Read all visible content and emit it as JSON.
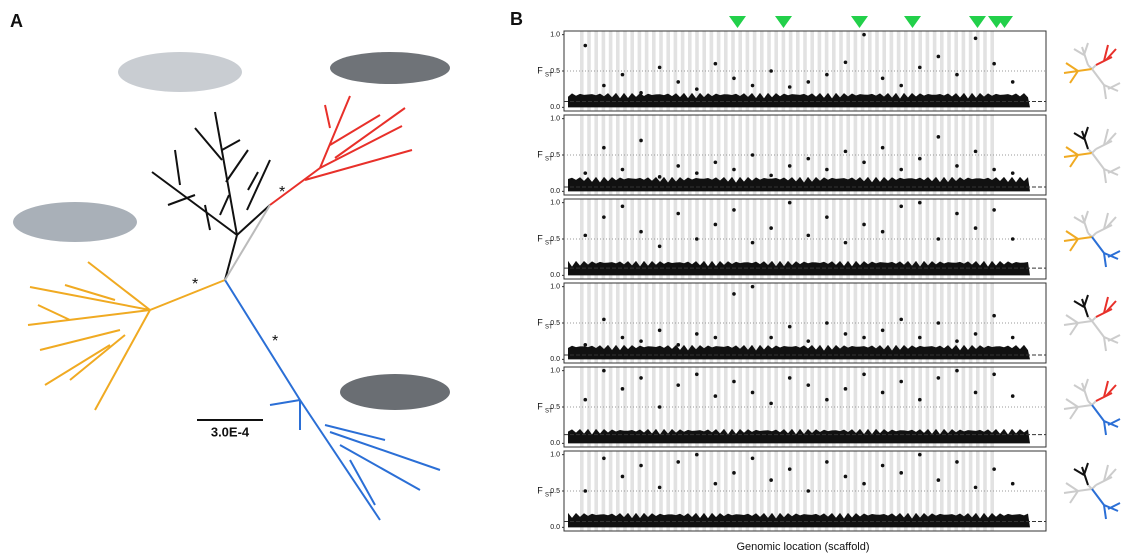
{
  "panel_a": {
    "label": "A",
    "scale_bar": "3.0E-4",
    "asterisks": [
      "*",
      "*",
      "*"
    ]
  },
  "panel_b": {
    "label": "B",
    "x_axis_label": "Genomic location (scaffold)"
  },
  "chart_data": [
    {
      "type": "scatter",
      "ylabel": "F",
      "ylabel_sub": "ST",
      "ylim": [
        -0.05,
        1.05
      ],
      "yticks": [
        {
          "value": 0,
          "label": "0.0"
        },
        {
          "value": 0.5,
          "label": "0.5"
        },
        {
          "value": 1,
          "label": "1.0"
        }
      ],
      "grid": true,
      "threshold": 0.08,
      "values": [
        0.85,
        0.3,
        0.45,
        0.2,
        0.55,
        0.35,
        0.25,
        0.6,
        0.4,
        0.3,
        0.5,
        0.28,
        0.35,
        0.45,
        0.62,
        1.0,
        0.4,
        0.3,
        0.55,
        0.7,
        0.45,
        0.95,
        0.6,
        0.35
      ]
    },
    {
      "type": "scatter",
      "ylabel": "F",
      "ylabel_sub": "ST",
      "ylim": [
        -0.05,
        1.05
      ],
      "yticks": [
        {
          "value": 0,
          "label": "0.0"
        },
        {
          "value": 0.5,
          "label": "0.5"
        },
        {
          "value": 1,
          "label": "1.0"
        }
      ],
      "grid": true,
      "threshold": 0.06,
      "values": [
        0.25,
        0.6,
        0.3,
        0.7,
        0.2,
        0.35,
        0.25,
        0.4,
        0.3,
        0.5,
        0.22,
        0.35,
        0.45,
        0.3,
        0.55,
        0.4,
        0.6,
        0.3,
        0.45,
        0.75,
        0.35,
        0.55,
        0.3,
        0.25
      ]
    },
    {
      "type": "scatter",
      "ylabel": "F",
      "ylabel_sub": "ST",
      "ylim": [
        -0.05,
        1.05
      ],
      "yticks": [
        {
          "value": 0,
          "label": "0.0"
        },
        {
          "value": 0.5,
          "label": "0.5"
        },
        {
          "value": 1,
          "label": "1.0"
        }
      ],
      "grid": true,
      "threshold": 0.1,
      "values": [
        0.55,
        0.8,
        0.95,
        0.6,
        0.4,
        0.85,
        0.5,
        0.7,
        0.9,
        0.45,
        0.65,
        1.0,
        0.55,
        0.8,
        0.45,
        0.7,
        0.6,
        0.95,
        1.0,
        0.5,
        0.85,
        0.65,
        0.9,
        0.5
      ]
    },
    {
      "type": "scatter",
      "ylabel": "F",
      "ylabel_sub": "ST",
      "ylim": [
        -0.05,
        1.05
      ],
      "yticks": [
        {
          "value": 0,
          "label": "0.0"
        },
        {
          "value": 0.5,
          "label": "0.5"
        },
        {
          "value": 1,
          "label": "1.0"
        }
      ],
      "grid": true,
      "threshold": 0.06,
      "values": [
        0.2,
        0.55,
        0.3,
        0.25,
        0.4,
        0.2,
        0.35,
        0.3,
        0.9,
        1.0,
        0.3,
        0.45,
        0.25,
        0.5,
        0.35,
        0.3,
        0.4,
        0.55,
        0.3,
        0.5,
        0.25,
        0.35,
        0.6,
        0.3
      ]
    },
    {
      "type": "scatter",
      "ylabel": "F",
      "ylabel_sub": "ST",
      "ylim": [
        -0.05,
        1.05
      ],
      "yticks": [
        {
          "value": 0,
          "label": "0.0"
        },
        {
          "value": 0.5,
          "label": "0.5"
        },
        {
          "value": 1,
          "label": "1.0"
        }
      ],
      "grid": true,
      "threshold": 0.12,
      "values": [
        0.6,
        1.0,
        0.75,
        0.9,
        0.5,
        0.8,
        0.95,
        0.65,
        0.85,
        0.7,
        0.55,
        0.9,
        0.8,
        0.6,
        0.75,
        0.95,
        0.7,
        0.85,
        0.6,
        0.9,
        1.0,
        0.7,
        0.95,
        0.65
      ]
    },
    {
      "type": "scatter",
      "ylabel": "F",
      "ylabel_sub": "ST",
      "ylim": [
        -0.05,
        1.05
      ],
      "yticks": [
        {
          "value": 0,
          "label": "0.0"
        },
        {
          "value": 0.5,
          "label": "0.5"
        },
        {
          "value": 1,
          "label": "1.0"
        }
      ],
      "grid": true,
      "threshold": 0.08,
      "values": [
        0.5,
        0.95,
        0.7,
        0.85,
        0.55,
        0.9,
        1.0,
        0.6,
        0.75,
        0.95,
        0.65,
        0.8,
        0.5,
        0.9,
        0.7,
        0.6,
        0.85,
        0.75,
        1.0,
        0.65,
        0.9,
        0.55,
        0.8,
        0.6
      ]
    }
  ]
}
